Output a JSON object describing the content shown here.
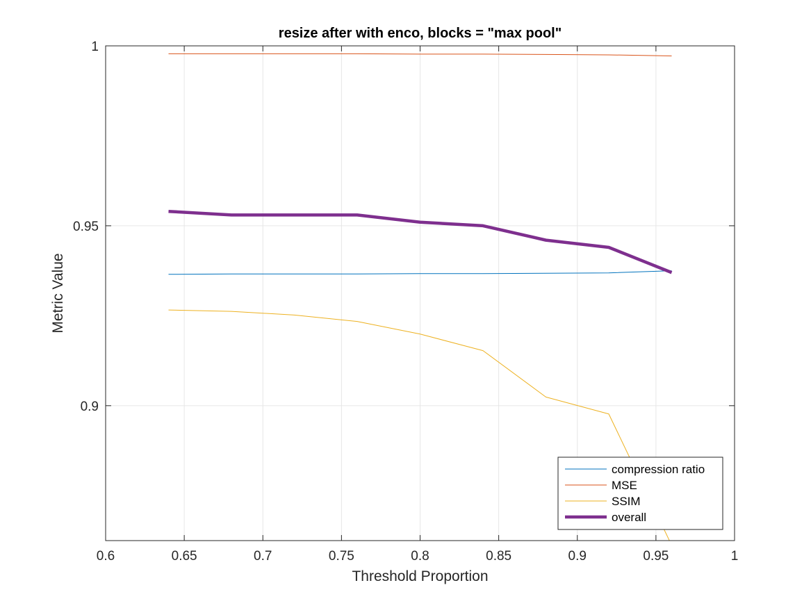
{
  "chart_data": {
    "type": "line",
    "title": "resize after with enco, blocks = \"max pool\"",
    "xlabel": "Threshold Proportion",
    "ylabel": "Metric Value",
    "xlim": [
      0.6,
      1.0
    ],
    "ylim": [
      0.8625,
      1.0
    ],
    "x_ticks": [
      0.6,
      0.65,
      0.7,
      0.75,
      0.8,
      0.85,
      0.9,
      0.95,
      1.0
    ],
    "x_tick_labels": [
      "0.6",
      "0.65",
      "0.7",
      "0.75",
      "0.8",
      "0.85",
      "0.9",
      "0.95",
      "1"
    ],
    "y_ticks": [
      0.9,
      0.95,
      1.0
    ],
    "y_tick_labels": [
      "0.9",
      "0.95",
      "1"
    ],
    "grid": true,
    "legend_position": "bottom-right",
    "x": [
      0.64,
      0.68,
      0.72,
      0.76,
      0.8,
      0.84,
      0.88,
      0.92,
      0.96
    ],
    "series": [
      {
        "name": "compression ratio",
        "color": "#0072BD",
        "width": "thin",
        "values": [
          0.9365,
          0.9366,
          0.9366,
          0.9366,
          0.9367,
          0.9367,
          0.9368,
          0.9369,
          0.9375
        ]
      },
      {
        "name": "MSE",
        "color": "#D95319",
        "width": "thin",
        "values": [
          0.9978,
          0.9978,
          0.9978,
          0.9978,
          0.9977,
          0.9977,
          0.9976,
          0.9975,
          0.9972
        ]
      },
      {
        "name": "SSIM",
        "color": "#EDB120",
        "width": "thin",
        "values": [
          0.9266,
          0.9262,
          0.9252,
          0.9234,
          0.9199,
          0.9153,
          0.9024,
          0.8977,
          0.8612
        ]
      },
      {
        "name": "overall",
        "color": "#7E2F8E",
        "width": "thick",
        "values": [
          0.954,
          0.953,
          0.953,
          0.953,
          0.951,
          0.95,
          0.946,
          0.944,
          0.937
        ]
      }
    ]
  }
}
